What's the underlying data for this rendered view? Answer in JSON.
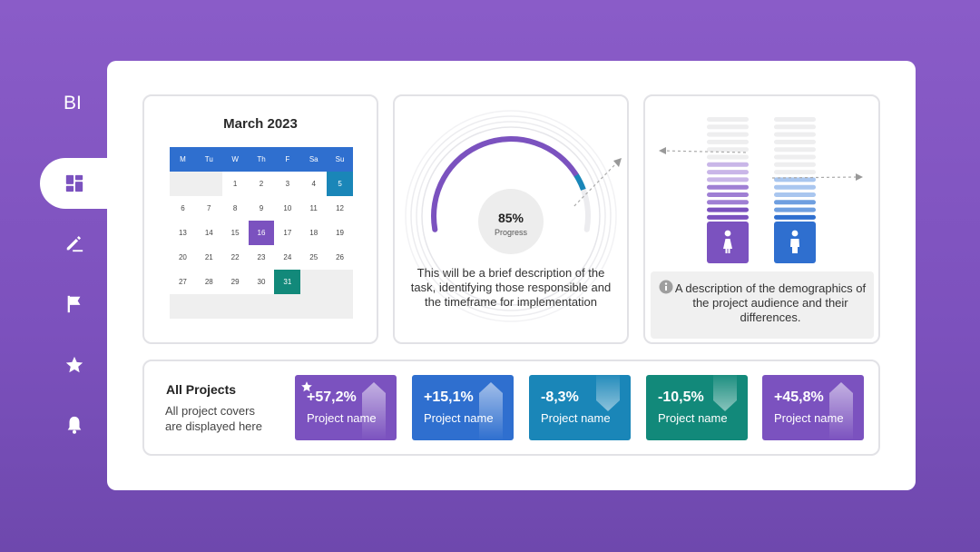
{
  "sidebar": {
    "logo": "BI",
    "items": [
      {
        "icon": "dashboard-icon",
        "active": true
      },
      {
        "icon": "pen-icon"
      },
      {
        "icon": "flag-icon"
      },
      {
        "icon": "star-icon"
      },
      {
        "icon": "bell-icon"
      }
    ]
  },
  "calendar": {
    "title": "March 2023",
    "weekdays": [
      "M",
      "Tu",
      "W",
      "Th",
      "F",
      "Sa",
      "Su"
    ],
    "leading_blanks": 2,
    "days": 31,
    "highlights": {
      "5": "teal",
      "16": "purple",
      "31": "green"
    }
  },
  "progress": {
    "value_label": "85%",
    "caption": "Progress",
    "fraction": 0.85,
    "description": "This will be a brief description of the task, identifying those responsible and the timeframe for implementation"
  },
  "demographics": {
    "female_level": 0.6,
    "male_level": 0.4,
    "description": "A description of the demographics of the project audience and their differences.",
    "info_icon": "info-icon",
    "icons": [
      "female-icon",
      "male-icon"
    ]
  },
  "projects": {
    "title": "All Projects",
    "subtitle_line1": "All project covers",
    "subtitle_line2": "are displayed here",
    "items": [
      {
        "pct": "+57,2%",
        "name": "Project name",
        "color": "#7b52bf",
        "direction": "up",
        "starred": true
      },
      {
        "pct": "+15,1%",
        "name": "Project name",
        "color": "#2f6fcf",
        "direction": "up",
        "starred": false
      },
      {
        "pct": "-8,3%",
        "name": "Project name",
        "color": "#1a86b8",
        "direction": "down",
        "starred": false
      },
      {
        "pct": "-10,5%",
        "name": "Project name",
        "color": "#12897a",
        "direction": "down",
        "starred": false
      },
      {
        "pct": "+45,8%",
        "name": "Project name",
        "color": "#7b52bf",
        "direction": "up",
        "starred": false
      }
    ]
  },
  "colors": {
    "purple": "#7b52bf",
    "blue": "#2f6fcf",
    "teal": "#1a86b8",
    "green": "#12897a"
  }
}
